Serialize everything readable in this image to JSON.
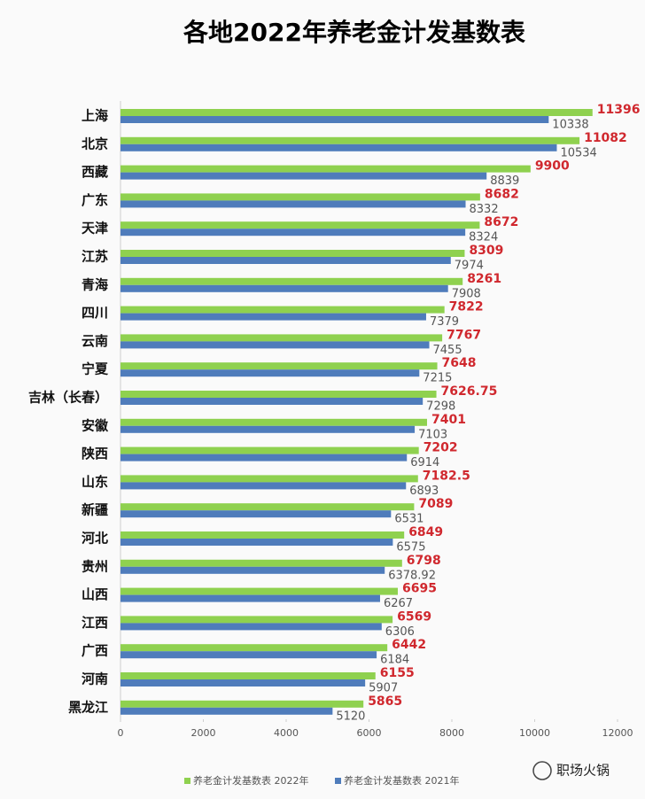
{
  "chart_data": {
    "type": "bar",
    "orientation": "horizontal",
    "title": "各地2022年养老金计发基数表",
    "categories": [
      "上海",
      "北京",
      "西藏",
      "广东",
      "天津",
      "江苏",
      "青海",
      "四川",
      "云南",
      "宁夏",
      "吉林（长春）",
      "安徽",
      "陕西",
      "山东",
      "新疆",
      "河北",
      "贵州",
      "山西",
      "江西",
      "广西",
      "河南",
      "黑龙江"
    ],
    "series": [
      {
        "name": "养老金计发基数表 2022年",
        "color": "#8fd14f",
        "label_color": "#d0282e",
        "values": [
          11396,
          11082,
          9900,
          8682,
          8672,
          8309,
          8261,
          7822,
          7767,
          7648,
          7626.75,
          7401,
          7202,
          7182.5,
          7089,
          6849,
          6798,
          6695,
          6569,
          6442,
          6155,
          5865
        ]
      },
      {
        "name": "养老金计发基数表 2021年",
        "color": "#4f7cbb",
        "label_color": "#555555",
        "values": [
          10338,
          10534,
          8839,
          8332,
          8324,
          7974,
          7908,
          7379,
          7455,
          7215,
          7298,
          7103,
          6914,
          6893,
          6531,
          6575,
          6378.92,
          6267,
          6306,
          6184,
          5907,
          5120
        ]
      }
    ],
    "xlim": [
      0,
      12000
    ],
    "xticks": [
      0,
      2000,
      4000,
      6000,
      8000,
      10000,
      12000
    ],
    "grid": false,
    "legend": "bottom",
    "watermark": "职场火锅"
  }
}
